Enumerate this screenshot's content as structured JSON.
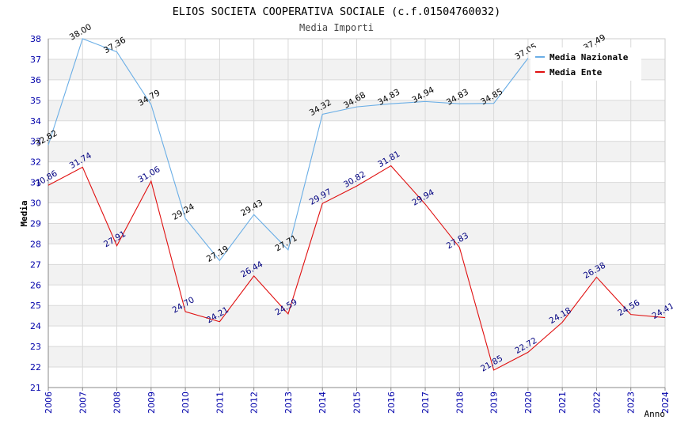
{
  "chart_data": {
    "type": "line",
    "title": "ELIOS SOCIETA COOPERATIVA SOCIALE (c.f.01504760032)",
    "subtitle": "Media Importi",
    "xlabel": "Anno",
    "ylabel": "Media",
    "ylim": [
      21,
      38
    ],
    "y_ticks": [
      "21",
      "22",
      "23",
      "24",
      "25",
      "26",
      "27",
      "28",
      "29",
      "30",
      "31",
      "32",
      "33",
      "34",
      "35",
      "36",
      "37",
      "38"
    ],
    "x": [
      "2006",
      "2007",
      "2008",
      "2009",
      "2010",
      "2011",
      "2012",
      "2013",
      "2014",
      "2015",
      "2016",
      "2017",
      "2018",
      "2019",
      "2020",
      "2021",
      "2022",
      "2023",
      "2024"
    ],
    "legend_position": "top-right",
    "series": [
      {
        "name": "Media Nazionale",
        "color": "#6aaee6",
        "label_color": "#000000",
        "values": [
          32.82,
          38.0,
          37.36,
          34.79,
          29.24,
          27.19,
          29.43,
          27.71,
          34.32,
          34.68,
          34.83,
          34.94,
          34.83,
          34.85,
          37.05,
          null,
          37.49,
          null,
          null
        ],
        "labels": [
          "32.82",
          "38.00",
          "37.36",
          "34.79",
          "29.24",
          "27.19",
          "29.43",
          "27.71",
          "34.32",
          "34.68",
          "34.83",
          "34.94",
          "34.83",
          "34.85",
          "37.05",
          "",
          "37.49",
          "",
          ""
        ]
      },
      {
        "name": "Media Ente",
        "color": "#e01010",
        "label_color": "#000080",
        "values": [
          30.86,
          31.74,
          27.91,
          31.06,
          24.7,
          24.21,
          26.44,
          24.59,
          29.97,
          30.82,
          31.81,
          29.94,
          27.83,
          21.85,
          22.72,
          24.18,
          26.38,
          24.56,
          24.41
        ],
        "labels": [
          "30.86",
          "31.74",
          "27.91",
          "31.06",
          "24.70",
          "24.21",
          "26.44",
          "24.59",
          "29.97",
          "30.82",
          "31.81",
          "29.94",
          "27.83",
          "21.85",
          "22.72",
          "24.18",
          "26.38",
          "24.56",
          "24.41"
        ]
      }
    ]
  }
}
